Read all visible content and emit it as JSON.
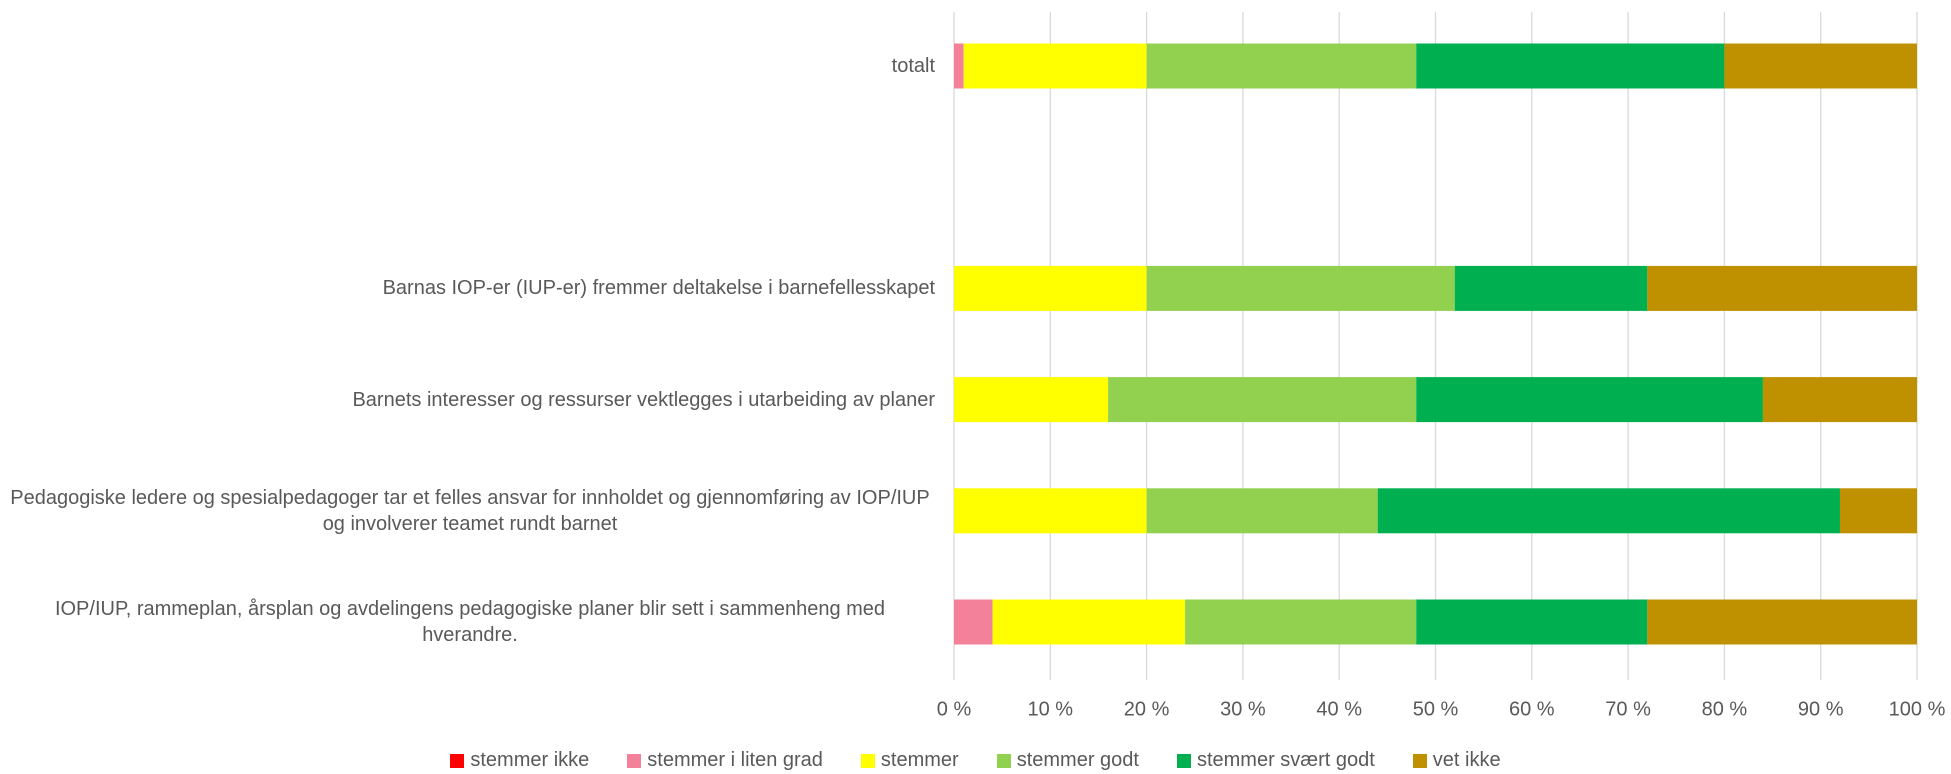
{
  "chart_data": {
    "type": "stacked_bar_horizontal",
    "categories": [
      "totalt",
      null,
      "Barnas IOP-er (IUP-er) fremmer deltakelse i barnefellesskapet",
      "Barnets interesser og ressurser vektlegges i utarbeiding av planer",
      "Pedagogiske ledere og spesialpedagoger tar et felles ansvar for innholdet og gjennomføring av IOP/IUP og involverer teamet rundt barnet",
      "IOP/IUP, rammeplan, årsplan og avdelingens pedagogiske planer blir sett i sammenheng med hverandre."
    ],
    "series": [
      {
        "name": "stemmer ikke",
        "color": "#ff0000",
        "values": [
          0,
          null,
          0,
          0,
          0,
          0
        ]
      },
      {
        "name": "stemmer i liten grad",
        "color": "#f4819a",
        "values": [
          1,
          null,
          0,
          0,
          0,
          4
        ]
      },
      {
        "name": "stemmer",
        "color": "#ffff00",
        "values": [
          19,
          null,
          20,
          16,
          20,
          20
        ]
      },
      {
        "name": "stemmer godt",
        "color": "#92d050",
        "values": [
          28,
          null,
          32,
          32,
          24,
          24
        ]
      },
      {
        "name": "stemmer svært godt",
        "color": "#00b050",
        "values": [
          32,
          null,
          20,
          36,
          48,
          24
        ]
      },
      {
        "name": "vet ikke",
        "color": "#bf9000",
        "values": [
          20,
          null,
          28,
          16,
          8,
          28
        ]
      }
    ],
    "xlim": [
      0,
      100
    ],
    "xticks": [
      {
        "value": 0,
        "label": "0 %"
      },
      {
        "value": 10,
        "label": "10 %"
      },
      {
        "value": 20,
        "label": "20 %"
      },
      {
        "value": 30,
        "label": "30 %"
      },
      {
        "value": 40,
        "label": "40 %"
      },
      {
        "value": 50,
        "label": "50 %"
      },
      {
        "value": 60,
        "label": "60 %"
      },
      {
        "value": 70,
        "label": "70 %"
      },
      {
        "value": 80,
        "label": "80 %"
      },
      {
        "value": 90,
        "label": "90 %"
      },
      {
        "value": 100,
        "label": "100 %"
      }
    ],
    "grid": true,
    "legend": "bottom"
  }
}
